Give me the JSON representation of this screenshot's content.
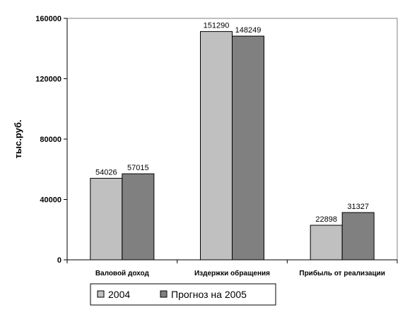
{
  "chart_data": {
    "type": "bar",
    "title": "",
    "xlabel": "",
    "ylabel": "тыс.руб.",
    "ylim": [
      0,
      160000
    ],
    "yticks": [
      0,
      40000,
      80000,
      120000,
      160000
    ],
    "ytick_labels": [
      "0",
      "40000",
      "80000",
      "120000",
      "160000"
    ],
    "categories": [
      "Валовой доход",
      "Издержки обращения",
      "Прибыль от реализации"
    ],
    "series": [
      {
        "name": "2004",
        "values": [
          54026,
          151290,
          22898
        ],
        "color": "#c0c0c0"
      },
      {
        "name": "Прогноз на 2005",
        "values": [
          57015,
          148249,
          31327
        ],
        "color": "#808080"
      }
    ],
    "data_labels": [
      [
        "54026",
        "151290",
        "22898"
      ],
      [
        "57015",
        "148249",
        "31327"
      ]
    ],
    "grid": false,
    "legend_position": "bottom"
  }
}
